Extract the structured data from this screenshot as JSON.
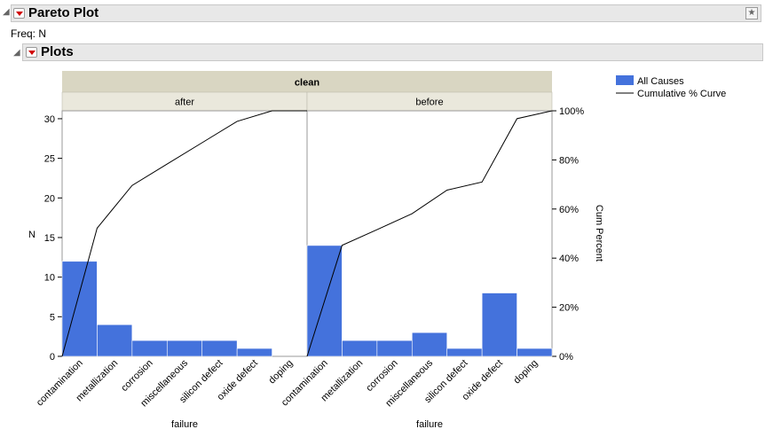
{
  "report": {
    "title": "Pareto Plot",
    "freq_label": "Freq: N",
    "plots_title": "Plots"
  },
  "legend": {
    "bar_label": "All Causes",
    "curve_label": "Cumulative % Curve"
  },
  "colors": {
    "bar": "#4472dc",
    "curve": "#000000",
    "header": "#d9d6c2"
  },
  "chart_data": {
    "type": "bar",
    "group_title": "clean",
    "ylabel": "N",
    "y2label": "Cum Percent",
    "xlabel": "failure",
    "ylim": [
      0,
      31
    ],
    "yticks": [
      0,
      5,
      10,
      15,
      20,
      25,
      30
    ],
    "y2ticks": [
      "0%",
      "20%",
      "40%",
      "60%",
      "80%",
      "100%"
    ],
    "panels": [
      {
        "name": "after",
        "categories": [
          "contamination",
          "metallization",
          "corrosion",
          "miscellaneous",
          "silicon defect",
          "oxide defect",
          "doping"
        ],
        "values": [
          12,
          4,
          2,
          2,
          2,
          1,
          0
        ],
        "cumulative_percent": [
          52.2,
          69.6,
          78.3,
          87.0,
          95.7,
          100,
          100
        ]
      },
      {
        "name": "before",
        "categories": [
          "contamination",
          "metallization",
          "corrosion",
          "miscellaneous",
          "silicon defect",
          "oxide defect",
          "doping"
        ],
        "values": [
          14,
          2,
          2,
          3,
          1,
          8,
          1
        ],
        "cumulative_percent": [
          45.2,
          51.6,
          58.1,
          67.7,
          71.0,
          96.8,
          100
        ]
      }
    ]
  }
}
